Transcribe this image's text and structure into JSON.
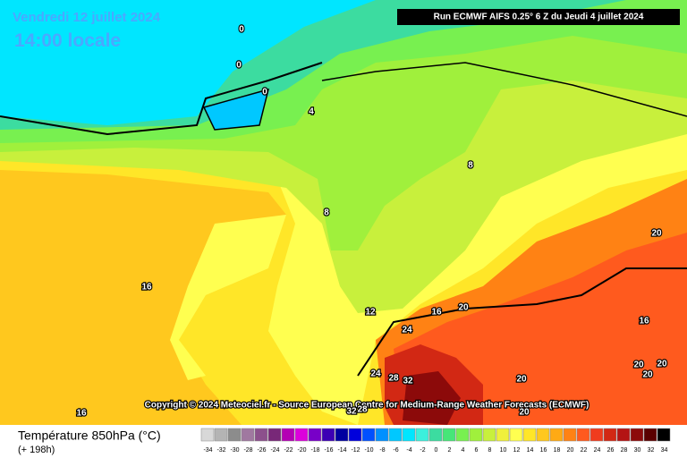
{
  "header": {
    "date": "Vendredi 12 juillet 2024",
    "time": "14:00 locale",
    "run": "Run ECMWF AIFS 0.25° 6 Z du Jeudi 4 juillet 2024"
  },
  "copyright": "Copyright © 2024 Meteociel.fr - Source European Centre for Medium-Range Weather Forecasts (ECMWF)",
  "footer": {
    "title": "Température 850hPa (°C)",
    "lead": "(+ 198h)"
  },
  "contour_labels": [
    0,
    0,
    0,
    4,
    8,
    8,
    16,
    12,
    16,
    20,
    24,
    24,
    28,
    32,
    20,
    20,
    16,
    20,
    20,
    20,
    16,
    32,
    28,
    20
  ],
  "scale": {
    "labels": [
      -34,
      -32,
      -30,
      -28,
      -26,
      -24,
      -22,
      -20,
      -18,
      -16,
      -14,
      -12,
      -10,
      -8,
      -6,
      -4,
      -2,
      0,
      2,
      4,
      6,
      8,
      10,
      12,
      14,
      16,
      18,
      20,
      22,
      24,
      26,
      28,
      30,
      32,
      34
    ],
    "colors": [
      "#d8d8d8",
      "#b4b4b4",
      "#8c8c8c",
      "#a078a0",
      "#8c508c",
      "#782878",
      "#b400b4",
      "#dc00dc",
      "#7800c8",
      "#3c00b4",
      "#0000a0",
      "#0000dc",
      "#0050ff",
      "#0090ff",
      "#00c8ff",
      "#00e6ff",
      "#3cf0dc",
      "#3cdca0",
      "#46e678",
      "#78f050",
      "#a0f03c",
      "#c8f03c",
      "#f0f03c",
      "#ffff50",
      "#ffe628",
      "#ffc81e",
      "#ffaa14",
      "#ff8214",
      "#ff5a1e",
      "#f03c1e",
      "#d22814",
      "#b41414",
      "#8c0a0a",
      "#5a0000",
      "#000000"
    ]
  }
}
